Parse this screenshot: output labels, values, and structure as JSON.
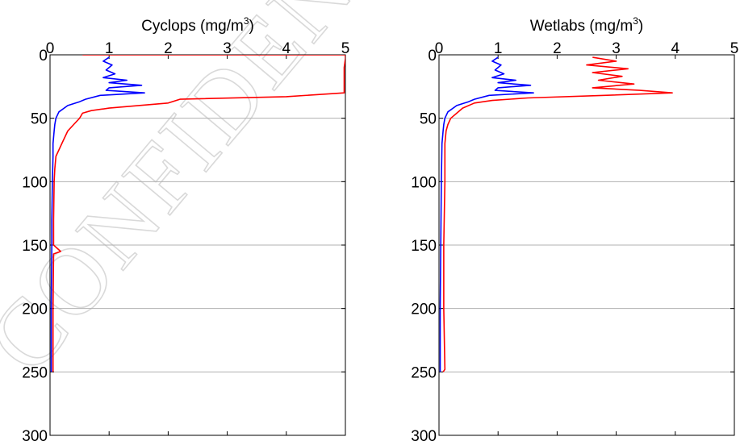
{
  "watermark": "CONFIDENTIAL",
  "colors": {
    "series_blue": "#0000ff",
    "series_red": "#ff0000",
    "grid": "#b0b0b0",
    "axis": "#000000"
  },
  "chart_data": [
    {
      "type": "line",
      "title": {
        "main": "Cyclops (mg/m",
        "sup": "3",
        "close": ")"
      },
      "xlabel": "",
      "ylabel": "",
      "xlim": [
        0,
        5
      ],
      "ylim": [
        0,
        300
      ],
      "y_reversed": true,
      "x_axis_position": "top",
      "xticks": [
        "0",
        "1",
        "2",
        "3",
        "4",
        "5"
      ],
      "yticks": [
        "0",
        "50",
        "100",
        "150",
        "200",
        "250",
        "300"
      ],
      "grid": "horizontal",
      "series": [
        {
          "color": "#0000ff",
          "points": [
            [
              1.0,
              2
            ],
            [
              0.9,
              5
            ],
            [
              1.05,
              8
            ],
            [
              0.95,
              12
            ],
            [
              1.1,
              15
            ],
            [
              0.9,
              18
            ],
            [
              1.3,
              20
            ],
            [
              1.0,
              22
            ],
            [
              1.55,
              24
            ],
            [
              1.0,
              26
            ],
            [
              0.95,
              28
            ],
            [
              1.6,
              30
            ],
            [
              0.85,
              32
            ],
            [
              0.6,
              35
            ],
            [
              0.5,
              37
            ],
            [
              0.3,
              40
            ],
            [
              0.15,
              45
            ],
            [
              0.1,
              50
            ],
            [
              0.08,
              55
            ],
            [
              0.07,
              60
            ],
            [
              0.05,
              70
            ],
            [
              0.05,
              80
            ],
            [
              0.04,
              100
            ],
            [
              0.03,
              130
            ],
            [
              0.03,
              150
            ],
            [
              0.02,
              200
            ],
            [
              0.02,
              250
            ]
          ]
        },
        {
          "color": "#ff0000",
          "points": [
            [
              0.55,
              0
            ],
            [
              5.0,
              0
            ],
            [
              5.0,
              3
            ],
            [
              4.98,
              10
            ],
            [
              4.98,
              20
            ],
            [
              4.98,
              30
            ],
            [
              4.0,
              33
            ],
            [
              2.2,
              35
            ],
            [
              2.0,
              38
            ],
            [
              1.0,
              42
            ],
            [
              0.7,
              44
            ],
            [
              0.55,
              46
            ],
            [
              0.5,
              50
            ],
            [
              0.4,
              55
            ],
            [
              0.3,
              60
            ],
            [
              0.2,
              70
            ],
            [
              0.15,
              75
            ],
            [
              0.1,
              80
            ],
            [
              0.08,
              90
            ],
            [
              0.07,
              100
            ],
            [
              0.06,
              130
            ],
            [
              0.06,
              150
            ],
            [
              0.18,
              155
            ],
            [
              0.06,
              157
            ],
            [
              0.05,
              200
            ],
            [
              0.05,
              250
            ]
          ]
        }
      ]
    },
    {
      "type": "line",
      "title": {
        "main": "Wetlabs (mg/m",
        "sup": "3",
        "close": ")"
      },
      "xlabel": "",
      "ylabel": "",
      "xlim": [
        0,
        5
      ],
      "ylim": [
        0,
        300
      ],
      "y_reversed": true,
      "x_axis_position": "top",
      "xticks": [
        "0",
        "1",
        "2",
        "3",
        "4",
        "5"
      ],
      "yticks": [
        "0",
        "50",
        "100",
        "150",
        "200",
        "250",
        "300"
      ],
      "grid": "horizontal",
      "series": [
        {
          "color": "#0000ff",
          "points": [
            [
              1.0,
              2
            ],
            [
              0.9,
              5
            ],
            [
              1.05,
              8
            ],
            [
              0.95,
              12
            ],
            [
              1.1,
              15
            ],
            [
              0.9,
              18
            ],
            [
              1.3,
              20
            ],
            [
              1.0,
              22
            ],
            [
              1.55,
              24
            ],
            [
              1.0,
              26
            ],
            [
              0.95,
              28
            ],
            [
              1.6,
              30
            ],
            [
              0.85,
              32
            ],
            [
              0.6,
              35
            ],
            [
              0.5,
              37
            ],
            [
              0.3,
              40
            ],
            [
              0.15,
              45
            ],
            [
              0.1,
              50
            ],
            [
              0.08,
              55
            ],
            [
              0.07,
              60
            ],
            [
              0.05,
              70
            ],
            [
              0.04,
              100
            ],
            [
              0.03,
              150
            ],
            [
              0.02,
              200
            ],
            [
              0.02,
              250
            ]
          ]
        },
        {
          "color": "#ff0000",
          "points": [
            [
              2.6,
              2
            ],
            [
              3.0,
              5
            ],
            [
              2.5,
              8
            ],
            [
              3.2,
              11
            ],
            [
              2.6,
              14
            ],
            [
              3.1,
              17
            ],
            [
              2.7,
              20
            ],
            [
              3.3,
              23
            ],
            [
              2.6,
              26
            ],
            [
              3.4,
              28
            ],
            [
              3.95,
              30
            ],
            [
              2.8,
              32
            ],
            [
              1.5,
              34
            ],
            [
              0.9,
              36
            ],
            [
              0.6,
              38
            ],
            [
              0.4,
              42
            ],
            [
              0.3,
              46
            ],
            [
              0.2,
              50
            ],
            [
              0.15,
              55
            ],
            [
              0.12,
              60
            ],
            [
              0.1,
              70
            ],
            [
              0.1,
              100
            ],
            [
              0.08,
              150
            ],
            [
              0.08,
              200
            ],
            [
              0.1,
              248
            ],
            [
              0.07,
              250
            ]
          ]
        }
      ]
    }
  ]
}
